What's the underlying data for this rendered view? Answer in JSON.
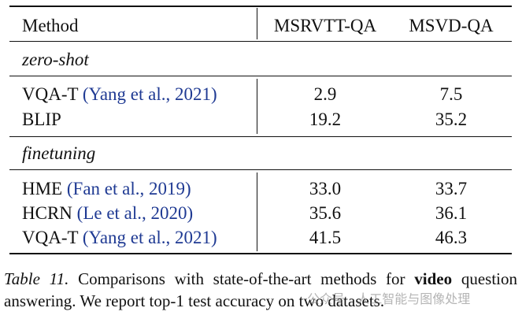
{
  "table": {
    "header": [
      "Method",
      "MSRVTT-QA",
      "MSVD-QA"
    ],
    "sections": [
      {
        "label": "zero-shot",
        "rows": [
          {
            "method": "VQA-T",
            "citation": "(Yang et al., 2021)",
            "values": [
              "2.9",
              "7.5"
            ]
          },
          {
            "method": "BLIP",
            "values": [
              "19.2",
              "35.2"
            ]
          }
        ]
      },
      {
        "label": "finetuning",
        "rows": [
          {
            "method": "HME",
            "citation": "(Fan et al., 2019)",
            "values": [
              "33.0",
              "33.7"
            ]
          },
          {
            "method": "HCRN",
            "citation": "(Le et al., 2020)",
            "values": [
              "35.6",
              "36.1"
            ]
          },
          {
            "method": "VQA-T",
            "citation": "(Yang et al., 2021)",
            "values": [
              "41.5",
              "46.3"
            ]
          }
        ]
      }
    ]
  },
  "caption": {
    "label": "Table 11.",
    "text_before": "Comparisons with state-of-the-art methods for",
    "bold": "video",
    "text_after": "question answering. We report top-1 test accuracy on two datasets."
  },
  "watermark": "公众号 · 人工智能与图像处理"
}
